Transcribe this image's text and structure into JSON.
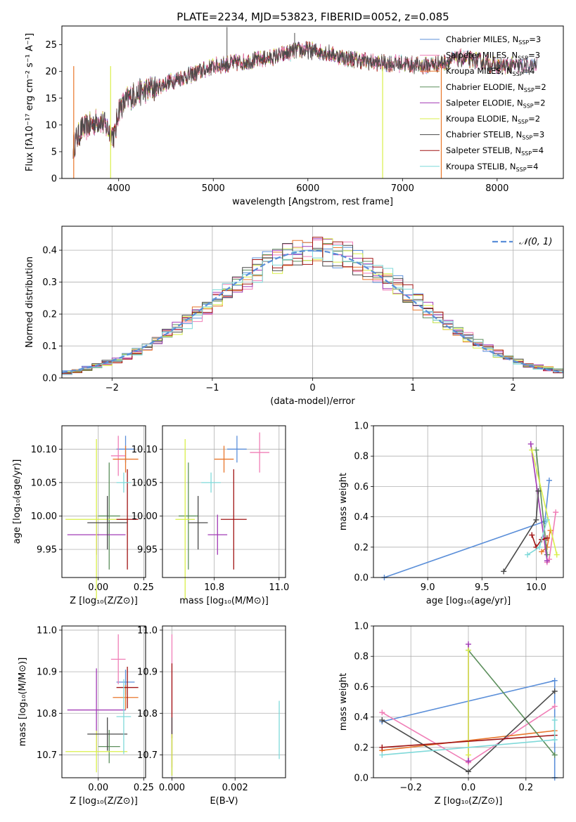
{
  "title": "PLATE=2234, MJD=53823, FIBERID=0052, z=0.085",
  "chart_data": [
    {
      "id": "spectrum",
      "type": "line",
      "title": "PLATE=2234, MJD=53823, FIBERID=0052, z=0.085",
      "xlabel": "wavelength [Angstrom, rest frame]",
      "ylabel": "Flux [fλ10⁻¹⁷ erg cm⁻² s⁻¹ A⁻¹]",
      "xlim": [
        3400,
        8700
      ],
      "ylim": [
        0,
        28.5
      ],
      "xticks": [
        4000,
        5000,
        6000,
        7000,
        8000
      ],
      "yticks": [
        0,
        5,
        10,
        15,
        20,
        25
      ],
      "grid": false,
      "legend_position": "upper-right",
      "continuum": {
        "x": [
          3520,
          3600,
          3700,
          3800,
          3900,
          3960,
          4000,
          4100,
          4200,
          4300,
          4400,
          4600,
          4800,
          5000,
          5200,
          5400,
          5600,
          5800,
          5900,
          6000,
          6200,
          6400,
          6600,
          6800,
          7000,
          7200,
          7400,
          7600,
          7800,
          8000,
          8200,
          8400
        ],
        "y": [
          6.0,
          9.0,
          10.0,
          11.0,
          9.0,
          8.0,
          13.0,
          15.0,
          16.0,
          16.5,
          17.0,
          18.5,
          19.5,
          21.0,
          21.5,
          22.0,
          22.5,
          23.5,
          24.0,
          24.0,
          23.5,
          22.5,
          22.0,
          21.5,
          21.5,
          21.0,
          21.5,
          22.5,
          22.0,
          21.0,
          21.0,
          21.0
        ]
      },
      "series": [
        {
          "name": "Chabrier MILES, N_SSP=3",
          "label_main": "Chabrier MILES, N",
          "label_sub": "SSP",
          "label_tail": "=3",
          "color": "#5b8fd9"
        },
        {
          "name": "Salpeter MILES, N_SSP=3",
          "label_main": "Salpeter MILES, N",
          "label_sub": "SSP",
          "label_tail": "=3",
          "color": "#f07fb7"
        },
        {
          "name": "Kroupa MILES, N_SSP=4",
          "label_main": "Kroupa MILES, N",
          "label_sub": "SSP",
          "label_tail": "=4",
          "color": "#e8762b"
        },
        {
          "name": "Chabrier ELODIE, N_SSP=2",
          "label_main": "Chabrier ELODIE, N",
          "label_sub": "SSP",
          "label_tail": "=2",
          "color": "#5c8f5c"
        },
        {
          "name": "Salpeter ELODIE, N_SSP=2",
          "label_main": "Salpeter ELODIE, N",
          "label_sub": "SSP",
          "label_tail": "=2",
          "color": "#a23bb5"
        },
        {
          "name": "Kroupa ELODIE, N_SSP=2",
          "label_main": "Kroupa ELODIE, N",
          "label_sub": "SSP",
          "label_tail": "=2",
          "color": "#d9ef4a"
        },
        {
          "name": "Chabrier STELIB, N_SSP=3",
          "label_main": "Chabrier STELIB, N",
          "label_sub": "SSP",
          "label_tail": "=3",
          "color": "#4a4a4a"
        },
        {
          "name": "Salpeter STELIB, N_SSP=4",
          "label_main": "Salpeter STELIB, N",
          "label_sub": "SSP",
          "label_tail": "=4",
          "color": "#a01414"
        },
        {
          "name": "Kroupa STELIB, N_SSP=4",
          "label_main": "Kroupa STELIB, N",
          "label_sub": "SSP",
          "label_tail": "=4",
          "color": "#7fd9d9"
        }
      ]
    },
    {
      "id": "residuals",
      "type": "histogram",
      "xlabel": "(data-model)/error",
      "ylabel": "Normed distribution",
      "xlim": [
        -2.5,
        2.5
      ],
      "ylim": [
        0,
        0.475
      ],
      "xticks": [
        -2,
        -1,
        0,
        1,
        2
      ],
      "yticks": [
        0.0,
        0.1,
        0.2,
        0.3,
        0.4
      ],
      "grid": true,
      "legend_position": "upper-right",
      "legend_label": "𝒩(0, 1)",
      "normal_curve": {
        "mean": 0,
        "std": 1,
        "color": "#5b8fd9"
      }
    },
    {
      "id": "age-vs-Z",
      "type": "errorbar",
      "xlabel": "Z [log₁₀(Z/Z⊙)]",
      "ylabel": "age  [log₁₀(age/yr)]",
      "xlim": [
        -0.2,
        0.26
      ],
      "ylim": [
        9.908,
        10.135
      ],
      "xticks": [
        0.0,
        0.25
      ],
      "xticklabels": [
        "0.00",
        "0.25"
      ],
      "yticks": [
        9.95,
        10.0,
        10.05,
        10.1
      ],
      "yticklabels": [
        "9.95",
        "10.00",
        "10.05",
        "10.10"
      ],
      "points": [
        {
          "x": 0.15,
          "y": 10.1,
          "xerr": 0.05,
          "yerr": 0.02,
          "color": "#5b8fd9"
        },
        {
          "x": 0.11,
          "y": 10.09,
          "xerr": 0.04,
          "yerr": 0.03,
          "color": "#f07fb7"
        },
        {
          "x": 0.15,
          "y": 10.085,
          "xerr": 0.07,
          "yerr": 0.02,
          "color": "#e8762b"
        },
        {
          "x": 0.06,
          "y": 10.0,
          "xerr": 0.06,
          "yerr": 0.08,
          "color": "#5c8f5c"
        },
        {
          "x": -0.01,
          "y": 9.972,
          "xerr": 0.16,
          "yerr": 0.03,
          "color": "#a23bb5"
        },
        {
          "x": -0.01,
          "y": 9.995,
          "xerr": 0.17,
          "yerr": 0.12,
          "color": "#d9ef4a"
        },
        {
          "x": 0.05,
          "y": 9.99,
          "xerr": 0.11,
          "yerr": 0.04,
          "color": "#4a4a4a"
        },
        {
          "x": 0.16,
          "y": 9.995,
          "xerr": 0.06,
          "yerr": 0.075,
          "color": "#a01414"
        },
        {
          "x": 0.14,
          "y": 10.05,
          "xerr": 0.04,
          "yerr": 0.015,
          "color": "#7fd9d9"
        }
      ]
    },
    {
      "id": "age-vs-mass",
      "type": "errorbar",
      "xlabel": "mass [log₁₀(M/M⊙)]",
      "ylabel": "",
      "xlim": [
        10.64,
        11.02
      ],
      "ylim": [
        9.908,
        10.135
      ],
      "xticks": [
        10.8,
        11.0
      ],
      "xticklabels": [
        "10.8",
        "11.0"
      ],
      "yticks": [
        9.95,
        10.0,
        10.05,
        10.1
      ],
      "yticklabels": [
        "9.95",
        "10.00",
        "10.05",
        "10.10"
      ],
      "points": [
        {
          "x": 10.87,
          "y": 10.1,
          "xerr": 0.03,
          "yerr": 0.02,
          "color": "#5b8fd9"
        },
        {
          "x": 10.94,
          "y": 10.095,
          "xerr": 0.03,
          "yerr": 0.03,
          "color": "#f07fb7"
        },
        {
          "x": 10.83,
          "y": 10.085,
          "xerr": 0.03,
          "yerr": 0.02,
          "color": "#e8762b"
        },
        {
          "x": 10.72,
          "y": 10.0,
          "xerr": 0.03,
          "yerr": 0.08,
          "color": "#5c8f5c"
        },
        {
          "x": 10.81,
          "y": 9.972,
          "xerr": 0.03,
          "yerr": 0.03,
          "color": "#a23bb5"
        },
        {
          "x": 10.71,
          "y": 9.995,
          "xerr": 0.03,
          "yerr": 0.12,
          "color": "#d9ef4a"
        },
        {
          "x": 10.75,
          "y": 9.99,
          "xerr": 0.03,
          "yerr": 0.04,
          "color": "#4a4a4a"
        },
        {
          "x": 10.86,
          "y": 9.995,
          "xerr": 0.04,
          "yerr": 0.075,
          "color": "#a01414"
        },
        {
          "x": 10.79,
          "y": 10.05,
          "xerr": 0.03,
          "yerr": 0.015,
          "color": "#7fd9d9"
        }
      ]
    },
    {
      "id": "weight-vs-age",
      "type": "line",
      "xlabel": "age  [log₁₀(age/yr)]",
      "ylabel": "mass weight",
      "xlim": [
        8.5,
        10.25
      ],
      "ylim": [
        0,
        1.0
      ],
      "xticks": [
        9.0,
        9.5,
        10.0
      ],
      "xticklabels": [
        "9.0",
        "9.5",
        "10.0"
      ],
      "yticks": [
        0.0,
        0.2,
        0.4,
        0.6,
        0.8,
        1.0
      ],
      "yticklabels": [
        "0.0",
        "0.2",
        "0.4",
        "0.6",
        "0.8",
        "1.0"
      ],
      "grid": true,
      "series": [
        {
          "color": "#5b8fd9",
          "x": [
            8.6,
            10.08,
            10.12
          ],
          "y": [
            0.0,
            0.37,
            0.64
          ]
        },
        {
          "color": "#f07fb7",
          "x": [
            10.1,
            10.12,
            10.18
          ],
          "y": [
            0.1,
            0.12,
            0.43
          ]
        },
        {
          "color": "#e8762b",
          "x": [
            10.05,
            10.1,
            10.13
          ],
          "y": [
            0.17,
            0.2,
            0.31
          ]
        },
        {
          "color": "#5c8f5c",
          "x": [
            10.0,
            10.1
          ],
          "y": [
            0.84,
            0.15
          ]
        },
        {
          "color": "#a23bb5",
          "x": [
            9.95,
            10.1
          ],
          "y": [
            0.88,
            0.11
          ]
        },
        {
          "color": "#d9ef4a",
          "x": [
            9.96,
            10.19
          ],
          "y": [
            0.84,
            0.15
          ]
        },
        {
          "color": "#4a4a4a",
          "x": [
            9.7,
            10.0,
            10.02
          ],
          "y": [
            0.04,
            0.38,
            0.57
          ]
        },
        {
          "color": "#a01414",
          "x": [
            9.96,
            10.0,
            10.05,
            10.1
          ],
          "y": [
            0.28,
            0.2,
            0.25,
            0.26
          ]
        },
        {
          "color": "#7fd9d9",
          "x": [
            9.92,
            10.03,
            10.1
          ],
          "y": [
            0.15,
            0.2,
            0.38
          ]
        }
      ]
    },
    {
      "id": "mass-vs-Z",
      "type": "errorbar",
      "xlabel": "Z [log₁₀(Z/Z⊙)]",
      "ylabel": "mass [log₁₀(M/M⊙)]",
      "xlim": [
        -0.2,
        0.26
      ],
      "ylim": [
        10.645,
        11.01
      ],
      "xticks": [
        0.0,
        0.25
      ],
      "xticklabels": [
        "0.00",
        "0.25"
      ],
      "yticks": [
        10.7,
        10.8,
        10.9,
        11.0
      ],
      "yticklabels": [
        "10.7",
        "10.8",
        "10.9",
        "11.0"
      ],
      "points": [
        {
          "x": 0.15,
          "y": 10.875,
          "xerr": 0.05,
          "yerr": 0.03,
          "color": "#5b8fd9"
        },
        {
          "x": 0.11,
          "y": 10.93,
          "xerr": 0.04,
          "yerr": 0.06,
          "color": "#f07fb7"
        },
        {
          "x": 0.15,
          "y": 10.838,
          "xerr": 0.07,
          "yerr": 0.03,
          "color": "#e8762b"
        },
        {
          "x": 0.06,
          "y": 10.72,
          "xerr": 0.06,
          "yerr": 0.04,
          "color": "#5c8f5c"
        },
        {
          "x": -0.01,
          "y": 10.808,
          "xerr": 0.16,
          "yerr": 0.1,
          "color": "#a23bb5"
        },
        {
          "x": -0.01,
          "y": 10.708,
          "xerr": 0.17,
          "yerr": 0.05,
          "color": "#d9ef4a"
        },
        {
          "x": 0.05,
          "y": 10.75,
          "xerr": 0.11,
          "yerr": 0.04,
          "color": "#4a4a4a"
        },
        {
          "x": 0.16,
          "y": 10.862,
          "xerr": 0.06,
          "yerr": 0.05,
          "color": "#a01414"
        },
        {
          "x": 0.14,
          "y": 10.792,
          "xerr": 0.04,
          "yerr": 0.09,
          "color": "#7fd9d9"
        }
      ]
    },
    {
      "id": "mass-vs-ebv",
      "type": "errorbar",
      "xlabel": "E(B-V)",
      "ylabel": "",
      "xlim": [
        -0.0003,
        0.0036
      ],
      "ylim": [
        10.645,
        11.01
      ],
      "xticks": [
        0.0,
        0.002
      ],
      "xticklabels": [
        "0.000",
        "0.002"
      ],
      "yticks": [
        10.7,
        10.8,
        10.9,
        11.0
      ],
      "yticklabels": [
        "10.7",
        "10.8",
        "10.9",
        "11.0"
      ],
      "points": [
        {
          "x": 0.0,
          "y": 10.83,
          "xerr": 0,
          "yerr": 0.16,
          "color": "#f07fb7"
        },
        {
          "x": 0.0,
          "y": 10.83,
          "xerr": 0,
          "yerr": 0.09,
          "color": "#a01414"
        },
        {
          "x": 0.0,
          "y": 10.72,
          "xerr": 0,
          "yerr": 0.07,
          "color": "#4a4a4a"
        },
        {
          "x": 0.0,
          "y": 10.7,
          "xerr": 0,
          "yerr": 0.05,
          "color": "#d9ef4a"
        },
        {
          "x": 0.0034,
          "y": 10.76,
          "xerr": 0,
          "yerr": 0.07,
          "color": "#7fd9d9"
        }
      ]
    },
    {
      "id": "weight-vs-Z",
      "type": "line",
      "xlabel": "Z [log₁₀(Z/Z⊙)]",
      "ylabel": "mass weight",
      "xlim": [
        -0.33,
        0.33
      ],
      "ylim": [
        0,
        1.0
      ],
      "xticks": [
        -0.2,
        0.0,
        0.2
      ],
      "xticklabels": [
        "−0.2",
        "0.0",
        "0.2"
      ],
      "yticks": [
        0.0,
        0.2,
        0.4,
        0.6,
        0.8,
        1.0
      ],
      "yticklabels": [
        "0.0",
        "0.2",
        "0.4",
        "0.6",
        "0.8",
        "1.0"
      ],
      "grid": true,
      "series": [
        {
          "color": "#5b8fd9",
          "x": [
            -0.3,
            0.3,
            0.3
          ],
          "y": [
            0.37,
            0.64,
            0.0
          ]
        },
        {
          "color": "#f07fb7",
          "x": [
            -0.3,
            0.0,
            0.3
          ],
          "y": [
            0.43,
            0.1,
            0.47
          ]
        },
        {
          "color": "#e8762b",
          "x": [
            -0.3,
            0.3
          ],
          "y": [
            0.18,
            0.31
          ]
        },
        {
          "color": "#5c8f5c",
          "x": [
            0.0,
            0.3
          ],
          "y": [
            0.84,
            0.15
          ]
        },
        {
          "color": "#a23bb5",
          "x": [
            0.0,
            0.0
          ],
          "y": [
            0.88,
            0.11
          ]
        },
        {
          "color": "#d9ef4a",
          "x": [
            0.0,
            0.0
          ],
          "y": [
            0.84,
            0.15
          ]
        },
        {
          "color": "#4a4a4a",
          "x": [
            -0.3,
            0.0,
            0.3
          ],
          "y": [
            0.38,
            0.04,
            0.57
          ]
        },
        {
          "color": "#a01414",
          "x": [
            -0.3,
            0.3
          ],
          "y": [
            0.2,
            0.28
          ]
        },
        {
          "color": "#7fd9d9",
          "x": [
            -0.3,
            0.3,
            0.3
          ],
          "y": [
            0.15,
            0.25,
            0.38
          ]
        }
      ]
    }
  ]
}
